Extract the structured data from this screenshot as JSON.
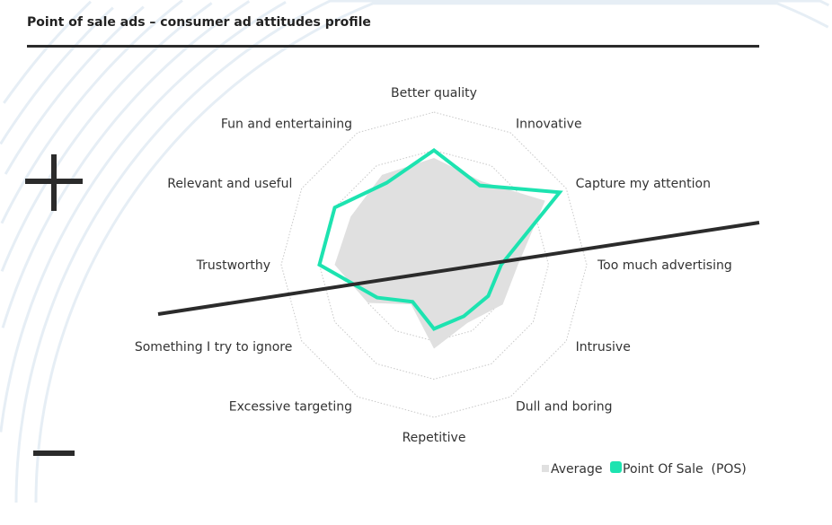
{
  "title": "Point of sale ads – consumer ad attitudes profile",
  "colors": {
    "average": "#e0e0e0",
    "pos": "#1de3b0",
    "line": "#2b2b2b"
  },
  "chart_data": {
    "type": "radar",
    "title": "Point of sale ads – consumer ad attitudes profile",
    "axes": [
      "Better quality",
      "Innovative",
      "Capture my attention",
      "Too much advertising",
      "Intrusive",
      "Dull and boring",
      "Repetitive",
      "Excessive targeting",
      "Something I try to ignore",
      "Trustworthy",
      "Relevant and useful",
      "Fun and entertaining"
    ],
    "range": [
      0,
      100
    ],
    "rings": 4,
    "series": [
      {
        "name": "Average",
        "values": [
          70,
          63,
          84,
          55,
          52,
          44,
          55,
          30,
          50,
          65,
          63,
          68
        ]
      },
      {
        "name": "Point Of Sale  (POS)",
        "values": [
          75,
          60,
          95,
          44,
          41,
          39,
          42,
          28,
          43,
          75,
          75,
          62
        ]
      }
    ],
    "legend": [
      "Average",
      "Point Of Sale  (POS)"
    ],
    "legend_position": "bottom-right",
    "annotations": {
      "positive": "+",
      "negative": "−"
    }
  }
}
